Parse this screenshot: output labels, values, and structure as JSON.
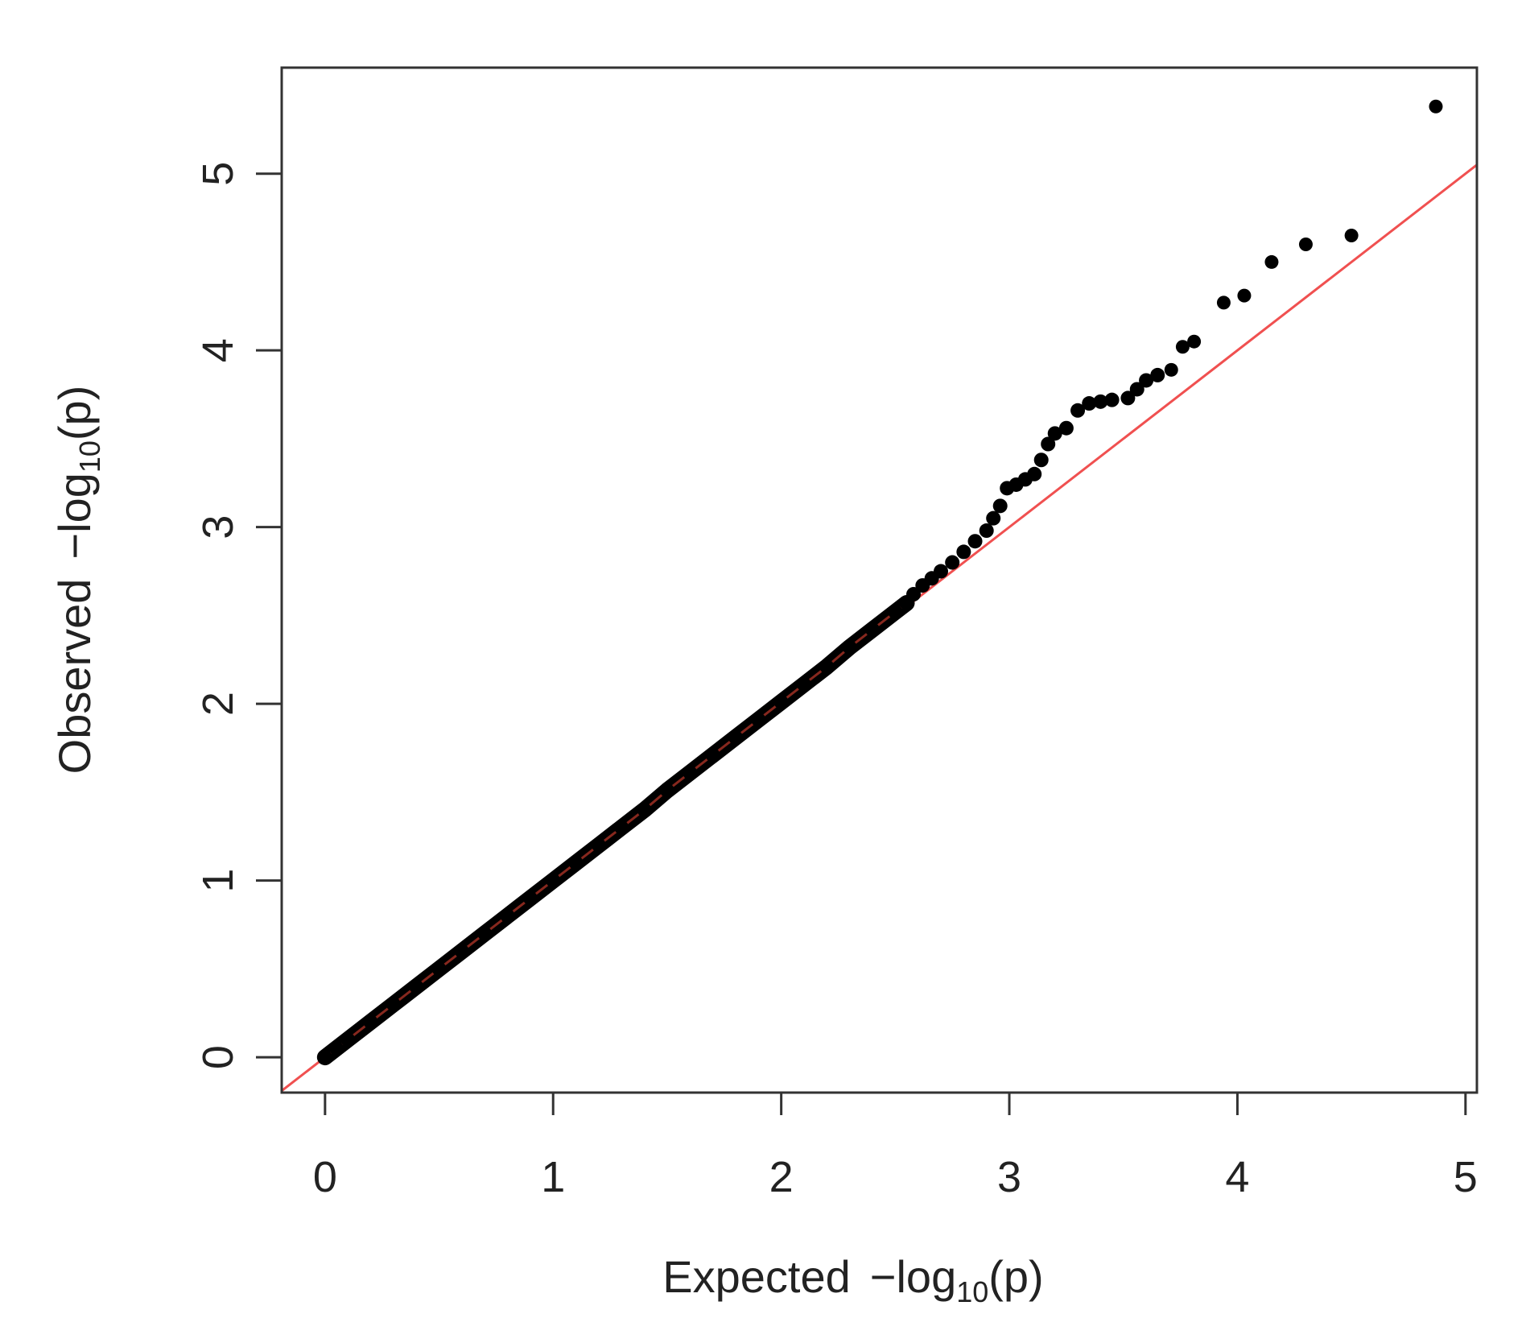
{
  "chart_data": {
    "type": "scatter",
    "title": "",
    "xlabel": {
      "prefix": "Expected",
      "minus": "−",
      "func": "log",
      "sub": "10",
      "arg": "(p)"
    },
    "ylabel": {
      "prefix": "Observed",
      "minus": "−",
      "func": "log",
      "sub": "10",
      "arg": "(p)"
    },
    "xlim": [
      -0.19,
      5.05
    ],
    "ylim": [
      -0.2,
      5.6
    ],
    "x_ticks": [
      "0",
      "1",
      "2",
      "3",
      "4",
      "5"
    ],
    "y_ticks": [
      "0",
      "1",
      "2",
      "3",
      "4",
      "5"
    ],
    "grid": false,
    "legend": "none",
    "reference_line": {
      "slope": 1,
      "intercept": 0,
      "color": "#f05050"
    },
    "point_color": "#000000",
    "series": [
      {
        "points": [
          [
            0.0,
            0.0
          ],
          [
            0.05,
            0.05
          ],
          [
            0.1,
            0.1
          ],
          [
            0.2,
            0.2
          ],
          [
            0.3,
            0.3
          ],
          [
            0.4,
            0.4
          ],
          [
            0.5,
            0.5
          ],
          [
            0.6,
            0.6
          ],
          [
            0.7,
            0.7
          ],
          [
            0.8,
            0.8
          ],
          [
            0.9,
            0.9
          ],
          [
            1.0,
            1.0
          ],
          [
            1.1,
            1.1
          ],
          [
            1.2,
            1.2
          ],
          [
            1.3,
            1.3
          ],
          [
            1.4,
            1.4
          ],
          [
            1.5,
            1.51
          ],
          [
            1.6,
            1.61
          ],
          [
            1.7,
            1.71
          ],
          [
            1.8,
            1.81
          ],
          [
            1.9,
            1.91
          ],
          [
            2.0,
            2.01
          ],
          [
            2.1,
            2.11
          ],
          [
            2.2,
            2.21
          ],
          [
            2.3,
            2.32
          ],
          [
            2.4,
            2.42
          ],
          [
            2.5,
            2.52
          ],
          [
            2.55,
            2.57
          ],
          [
            2.58,
            2.62
          ],
          [
            2.62,
            2.67
          ],
          [
            2.66,
            2.71
          ],
          [
            2.7,
            2.75
          ],
          [
            2.75,
            2.8
          ],
          [
            2.8,
            2.86
          ],
          [
            2.85,
            2.92
          ],
          [
            2.9,
            2.98
          ],
          [
            2.93,
            3.05
          ],
          [
            2.96,
            3.12
          ],
          [
            2.99,
            3.22
          ],
          [
            3.03,
            3.24
          ],
          [
            3.07,
            3.27
          ],
          [
            3.11,
            3.3
          ],
          [
            3.14,
            3.38
          ],
          [
            3.17,
            3.47
          ],
          [
            3.2,
            3.53
          ],
          [
            3.25,
            3.56
          ],
          [
            3.3,
            3.66
          ],
          [
            3.35,
            3.7
          ],
          [
            3.4,
            3.71
          ],
          [
            3.45,
            3.72
          ],
          [
            3.52,
            3.73
          ],
          [
            3.56,
            3.78
          ],
          [
            3.6,
            3.83
          ],
          [
            3.65,
            3.86
          ],
          [
            3.71,
            3.89
          ],
          [
            3.76,
            4.02
          ],
          [
            3.81,
            4.05
          ],
          [
            3.94,
            4.27
          ],
          [
            4.03,
            4.31
          ],
          [
            4.15,
            4.5
          ],
          [
            4.3,
            4.6
          ],
          [
            4.5,
            4.65
          ],
          [
            4.87,
            5.38
          ]
        ]
      }
    ]
  }
}
